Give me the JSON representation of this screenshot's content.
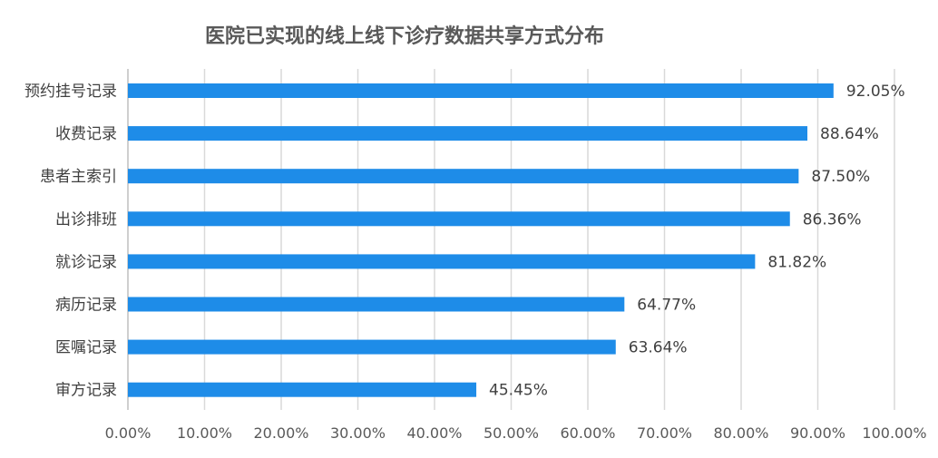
{
  "chart_data": {
    "type": "bar",
    "orientation": "horizontal",
    "title": "医院已实现的线上线下诊疗数据共享方式分布",
    "categories": [
      "预约挂号记录",
      "收费记录",
      "患者主索引",
      "出诊排班",
      "就诊记录",
      "病历记录",
      "医嘱记录",
      "审方记录"
    ],
    "values": [
      92.05,
      88.64,
      87.5,
      86.36,
      81.82,
      64.77,
      63.64,
      45.45
    ],
    "data_labels": [
      "92.05%",
      "88.64%",
      "87.50%",
      "86.36%",
      "81.82%",
      "64.77%",
      "63.64%",
      "45.45%"
    ],
    "xlim": [
      0,
      100
    ],
    "x_ticks": [
      0,
      10,
      20,
      30,
      40,
      50,
      60,
      70,
      80,
      90,
      100
    ],
    "x_tick_labels": [
      "0.00%",
      "10.00%",
      "20.00%",
      "30.00%",
      "40.00%",
      "50.00%",
      "60.00%",
      "70.00%",
      "80.00%",
      "90.00%",
      "100.00%"
    ],
    "grid": true,
    "legend": "none",
    "bar_color": "#1e8ce8",
    "xlabel": "",
    "ylabel": ""
  }
}
